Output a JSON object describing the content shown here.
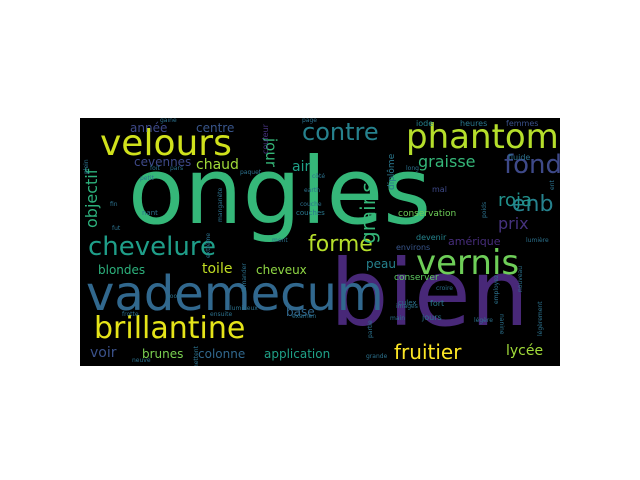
{
  "words": [
    {
      "text": "ongles",
      "color": "#35b779"
    },
    {
      "text": "bien",
      "color": "#482878"
    },
    {
      "text": "vademecum",
      "color": "#31688e"
    },
    {
      "text": "phantom",
      "color": "#b5de2b"
    },
    {
      "text": "velours",
      "color": "#d0e11c"
    },
    {
      "text": "brillantine",
      "color": "#e5e419"
    },
    {
      "text": "vernis",
      "color": "#6ece58"
    },
    {
      "text": "chevelure",
      "color": "#1f9e89"
    },
    {
      "text": "contre",
      "color": "#26828e"
    },
    {
      "text": "fond",
      "color": "#3e4989"
    },
    {
      "text": "forme",
      "color": "#b5de2b"
    },
    {
      "text": "enb",
      "color": "#26828e"
    },
    {
      "text": "fruitier",
      "color": "#fde725"
    },
    {
      "text": "grains",
      "color": "#35b779"
    },
    {
      "text": "objectif",
      "color": "#2db27d"
    },
    {
      "text": "roja",
      "color": "#21918c"
    },
    {
      "text": "graisse",
      "color": "#35b779"
    },
    {
      "text": "prix",
      "color": "#46327e"
    },
    {
      "text": "jour",
      "color": "#35b779"
    },
    {
      "text": "année",
      "color": "#3e4989"
    },
    {
      "text": "centre",
      "color": "#39568c"
    },
    {
      "text": "cevennes",
      "color": "#3e4989"
    },
    {
      "text": "chaud",
      "color": "#a0da39"
    },
    {
      "text": "toile",
      "color": "#c2df23"
    },
    {
      "text": "cheveux",
      "color": "#8fd744"
    },
    {
      "text": "blondes",
      "color": "#2db27d"
    },
    {
      "text": "peau",
      "color": "#26828e"
    },
    {
      "text": "amérique",
      "color": "#472d7b"
    },
    {
      "text": "air",
      "color": "#1fa187"
    },
    {
      "text": "base",
      "color": "#31688e"
    },
    {
      "text": "lycée",
      "color": "#a0da39"
    },
    {
      "text": "voir",
      "color": "#3b528b"
    },
    {
      "text": "brunes",
      "color": "#7ad151"
    },
    {
      "text": "colonne",
      "color": "#31688e"
    },
    {
      "text": "application",
      "color": "#1fa187"
    },
    {
      "text": "diplôme",
      "color": "#2a788e"
    },
    {
      "text": "couches",
      "color": "#2a788e"
    },
    {
      "text": "conservation",
      "color": "#6ece58"
    },
    {
      "text": "conserver",
      "color": "#5ec962"
    },
    {
      "text": "couleur",
      "color": "#46327e"
    },
    {
      "text": "heures",
      "color": "#2a788e"
    },
    {
      "text": "femmes",
      "color": "#3b528b"
    },
    {
      "text": "fluide",
      "color": "#2c728e"
    },
    {
      "text": "iode",
      "color": "#26828e"
    },
    {
      "text": "fort",
      "color": "#2a788e"
    },
    {
      "text": "mal",
      "color": "#3e4989"
    },
    {
      "text": "nant",
      "color": "#2c728e"
    },
    {
      "text": "devenir",
      "color": "#25848e"
    },
    {
      "text": "environs",
      "color": "#39568c"
    },
    {
      "text": "jours",
      "color": "#2c728e"
    },
    {
      "text": "fin",
      "color": "#2c728e"
    },
    {
      "text": "fut",
      "color": "#2c728e"
    },
    {
      "text": "pars",
      "color": "#2c728e"
    },
    {
      "text": "manganète",
      "color": "#2c728e"
    },
    {
      "text": "culex",
      "color": "#2c728e"
    },
    {
      "text": "partie",
      "color": "#2c728e"
    },
    {
      "text": "grande",
      "color": "#2c728e"
    },
    {
      "text": "images",
      "color": "#2c728e"
    },
    {
      "text": "main",
      "color": "#2c728e"
    },
    {
      "text": "croire",
      "color": "#2c728e"
    },
    {
      "text": "légère",
      "color": "#2c728e"
    },
    {
      "text": "employez",
      "color": "#2c728e"
    },
    {
      "text": "nouveau",
      "color": "#2c728e"
    },
    {
      "text": "lumière",
      "color": "#2c728e"
    },
    {
      "text": "légèrement",
      "color": "#2c728e"
    },
    {
      "text": "nanine",
      "color": "#2c728e"
    },
    {
      "text": "ensuite",
      "color": "#2c728e"
    },
    {
      "text": "lumineux",
      "color": "#2c728e"
    },
    {
      "text": "frotte",
      "color": "#2c728e"
    },
    {
      "text": "good",
      "color": "#2c728e"
    },
    {
      "text": "paquet",
      "color": "#2c728e"
    },
    {
      "text": "foit",
      "color": "#2c728e"
    },
    {
      "text": "gaine",
      "color": "#2c728e"
    },
    {
      "text": "petit",
      "color": "#2c728e"
    },
    {
      "text": "ment",
      "color": "#2c728e"
    },
    {
      "text": "earth",
      "color": "#2c728e"
    },
    {
      "text": "côté",
      "color": "#2c728e"
    },
    {
      "text": "long",
      "color": "#2c728e"
    },
    {
      "text": "poids",
      "color": "#2c728e"
    },
    {
      "text": "ent",
      "color": "#2c728e"
    },
    {
      "text": "extrême",
      "color": "#2c728e"
    },
    {
      "text": "permettent",
      "color": "#2c728e"
    },
    {
      "text": "demander",
      "color": "#2c728e"
    },
    {
      "text": "examen",
      "color": "#2c728e"
    },
    {
      "text": "couche",
      "color": "#2c728e"
    },
    {
      "text": "plein",
      "color": "#2c728e"
    },
    {
      "text": "page",
      "color": "#2c728e"
    },
    {
      "text": "neuve",
      "color": "#2c728e"
    }
  ]
}
